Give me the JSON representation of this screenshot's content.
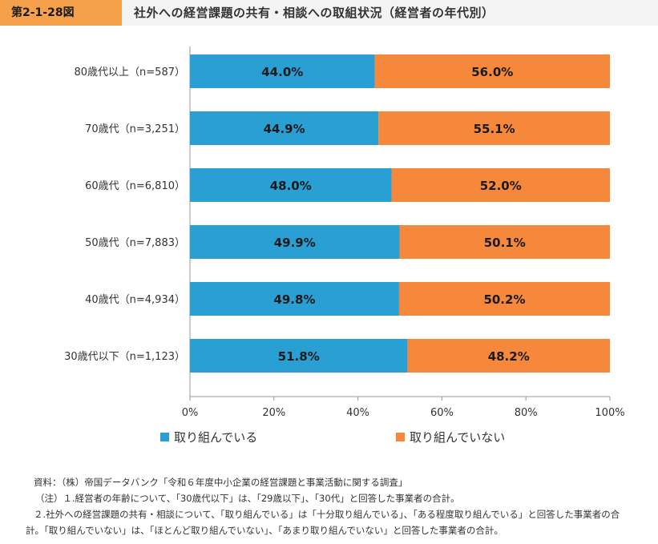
{
  "header": {
    "figure_label": "第2-1-28図",
    "title": "社外への経営課題の共有・相談への取組状況（経営者の年代別）"
  },
  "colors": {
    "series1": "#2a9fd4",
    "series2": "#f5883a",
    "header_accent": "#f5a04a"
  },
  "chart_data": {
    "type": "bar",
    "orientation": "horizontal",
    "stacked": true,
    "categories": [
      "80歳代以上（n=587）",
      "70歳代（n=3,251）",
      "60歳代（n=6,810）",
      "50歳代（n=7,883）",
      "40歳代（n=4,934）",
      "30歳代以下（n=1,123）"
    ],
    "series": [
      {
        "name": "取り組んでいる",
        "values": [
          44.0,
          44.9,
          48.0,
          49.9,
          49.8,
          51.8
        ],
        "labels": [
          "44.0%",
          "44.9%",
          "48.0%",
          "49.9%",
          "49.8%",
          "51.8%"
        ]
      },
      {
        "name": "取り組んでいない",
        "values": [
          56.0,
          55.1,
          52.0,
          50.1,
          50.2,
          48.2
        ],
        "labels": [
          "56.0%",
          "55.1%",
          "52.0%",
          "50.1%",
          "50.2%",
          "48.2%"
        ]
      }
    ],
    "xlim": [
      0,
      100
    ],
    "xticks": [
      "0%",
      "20%",
      "40%",
      "60%",
      "80%",
      "100%"
    ],
    "legend_position": "bottom",
    "grid": false
  },
  "notes": [
    "資料：（株）帝国データバンク「令和６年度中小企業の経営課題と事業活動に関する調査」",
    "（注）１.経営者の年齢について、「30歳代以下」は、「29歳以下」、「30代」と回答した事業者の合計。",
    "２.社外への経営課題の共有・相談について、「取り組んでいる」は「十分取り組んでいる」、「ある程度取り組んでいる」と回答した事業者の合",
    "計。「取り組んでいない」は、「ほとんど取り組んでいない」、「あまり取り組んでいない」と回答した事業者の合計。"
  ]
}
